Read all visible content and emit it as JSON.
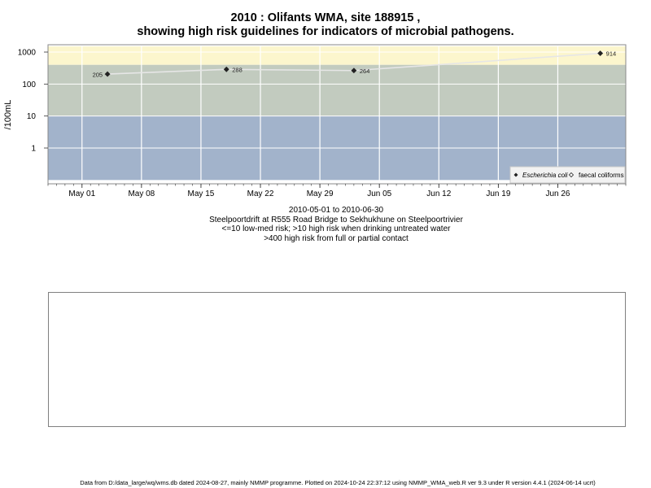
{
  "title": {
    "line1": "2010 : Olifants WMA, site 188915 ,",
    "line2": "showing high risk guidelines for indicators of microbial pathogens."
  },
  "caption": {
    "line1": "2010-05-01 to 2010-06-30",
    "line2": "Steelpoortdrift at R555 Road Bridge to Sekhukhune on Steelpoortrivier",
    "line3": "<=10 low-med risk; >10 high risk when drinking untreated water",
    "line4": ">400 high risk from full or partial contact"
  },
  "footer": "Data from D:/data_large/wq/wms.db dated 2024-08-27, mainly NMMP programme. Plotted on 2024-10-24 22:37:12 using NMMP_WMA_web.R ver 9.3 under R version 4.4.1 (2024-06-14 ucrt)",
  "chart_data": {
    "type": "line",
    "ylabel": "/100mL",
    "y_scale": "log",
    "yticks": [
      1,
      10,
      100,
      1000
    ],
    "ytick_labels": [
      "1",
      "10",
      "100",
      "1000"
    ],
    "xlim": [
      "2010-04-27",
      "2010-07-04"
    ],
    "xticks": [
      "2010-05-01",
      "2010-05-08",
      "2010-05-15",
      "2010-05-22",
      "2010-05-29",
      "2010-06-05",
      "2010-06-12",
      "2010-06-19",
      "2010-06-26"
    ],
    "xtick_labels": [
      "May 01",
      "May 08",
      "May 15",
      "May 22",
      "May 29",
      "Jun 05",
      "Jun 12",
      "Jun 19",
      "Jun 26"
    ],
    "risk_bands": [
      {
        "from": 0.1,
        "to": 10,
        "color": "#a2b3cb"
      },
      {
        "from": 10,
        "to": 400,
        "color": "#c2cbbf"
      },
      {
        "from": 400,
        "to": 1500,
        "color": "#fcf6cd"
      }
    ],
    "grid": true,
    "series": [
      {
        "name": "Escherichia coli",
        "marker": "filled-diamond",
        "color": "#222222",
        "points": [
          {
            "x": "2010-05-04",
            "y": 205,
            "label": "205"
          },
          {
            "x": "2010-05-18",
            "y": 288,
            "label": "288"
          },
          {
            "x": "2010-06-02",
            "y": 264,
            "label": "264"
          },
          {
            "x": "2010-07-01",
            "y": 914,
            "label": "914"
          }
        ]
      },
      {
        "name": "faecal coliforms",
        "marker": "open-diamond",
        "color": "#222222",
        "points": []
      }
    ],
    "legend_position": "bottom-right"
  }
}
